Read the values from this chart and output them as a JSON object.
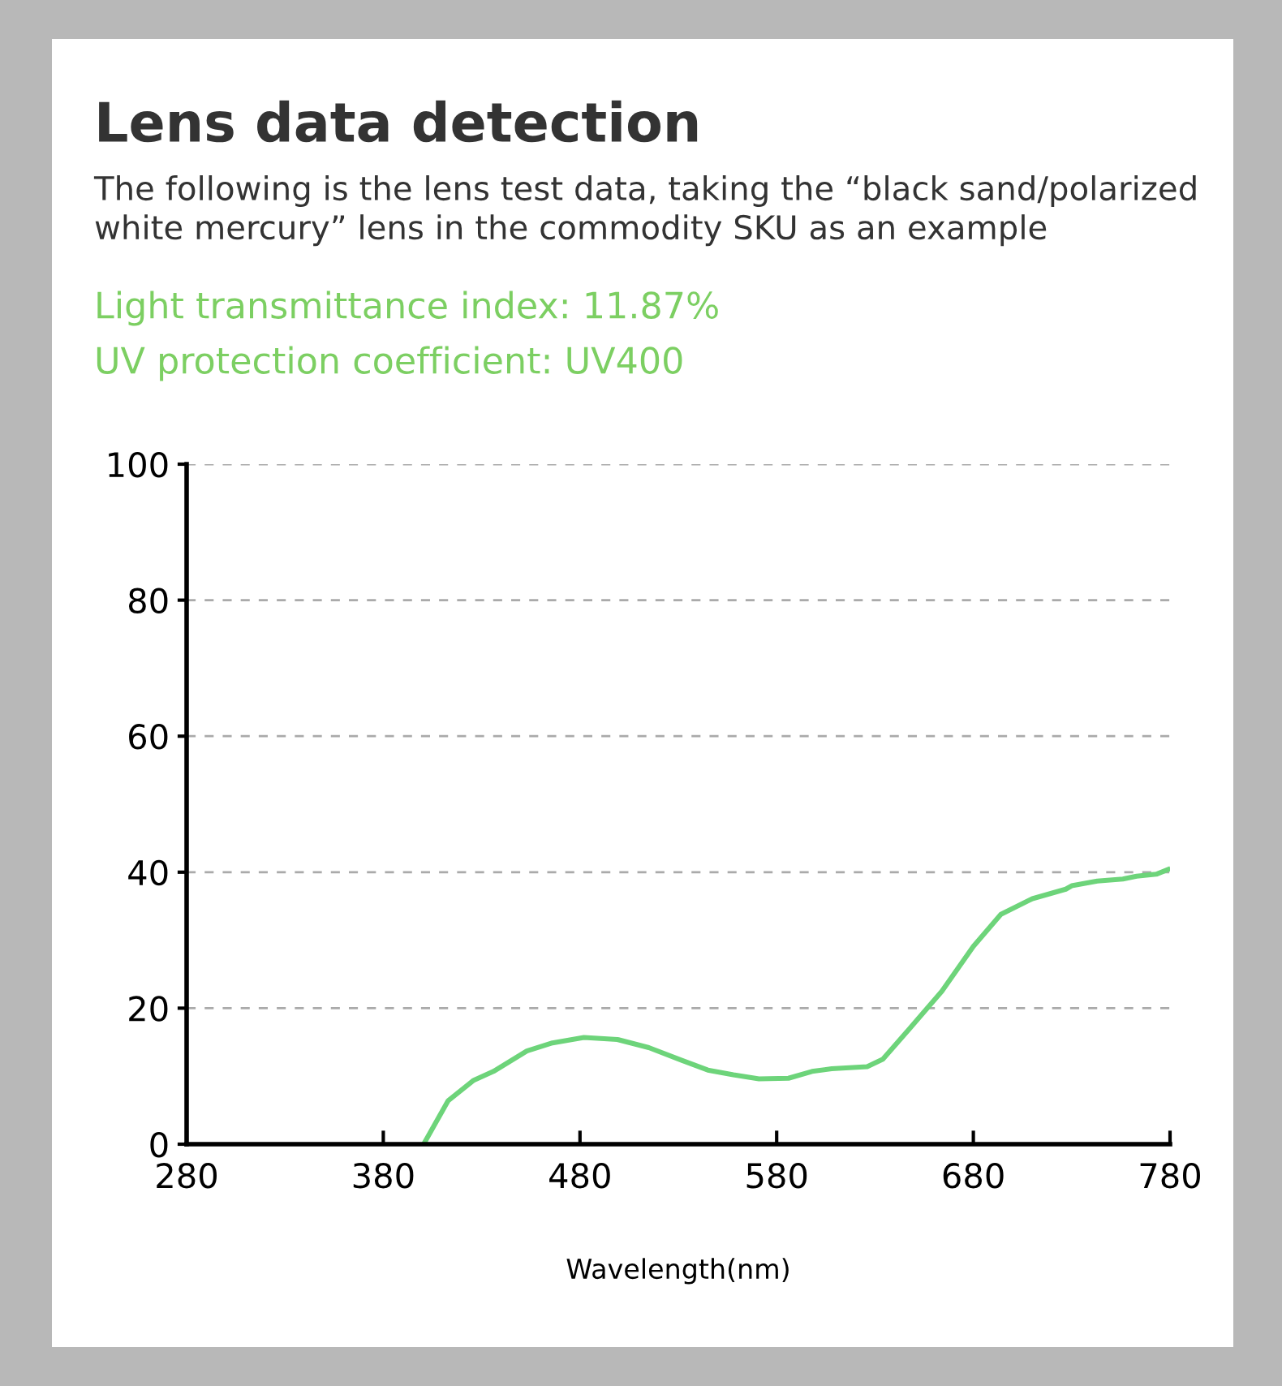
{
  "chart_data": {
    "type": "line",
    "title": "Lens data detection",
    "subtitle": "The following is the lens test data, taking the “black sand/polarized white mercury” lens in the commodity SKU as an example",
    "annotations": [
      "Light transmittance index: 11.87%",
      "UV protection coefficient: UV400"
    ],
    "xlabel": "Wavelength(nm)",
    "x": [
      400.5,
      404.8,
      413,
      426,
      436,
      453,
      466,
      482,
      499,
      515,
      532,
      545,
      558,
      571,
      586,
      598,
      608,
      626,
      634,
      647,
      664,
      680,
      694,
      710,
      727,
      730,
      743,
      756,
      763,
      773,
      779
    ],
    "series": [
      {
        "color": "#6dd47a",
        "values": [
          0,
          2.2,
          6.4,
          9.4,
          10.7,
          13.7,
          14.9,
          15.7,
          15.4,
          14.2,
          12.3,
          10.9,
          10.2,
          9.6,
          9.7,
          10.7,
          11.1,
          11.4,
          12.5,
          16.8,
          22.5,
          29.1,
          33.8,
          36.1,
          37.5,
          38.0,
          38.7,
          39.0,
          39.4,
          39.7,
          40.4
        ]
      }
    ],
    "xlim": [
      280,
      780
    ],
    "xticks": [
      280,
      380,
      480,
      580,
      680,
      780
    ],
    "ylim": [
      0,
      100
    ],
    "yticks": [
      0,
      20,
      40,
      60,
      80,
      100
    ],
    "grid": "y",
    "line_style": "solid",
    "marker": "none"
  }
}
